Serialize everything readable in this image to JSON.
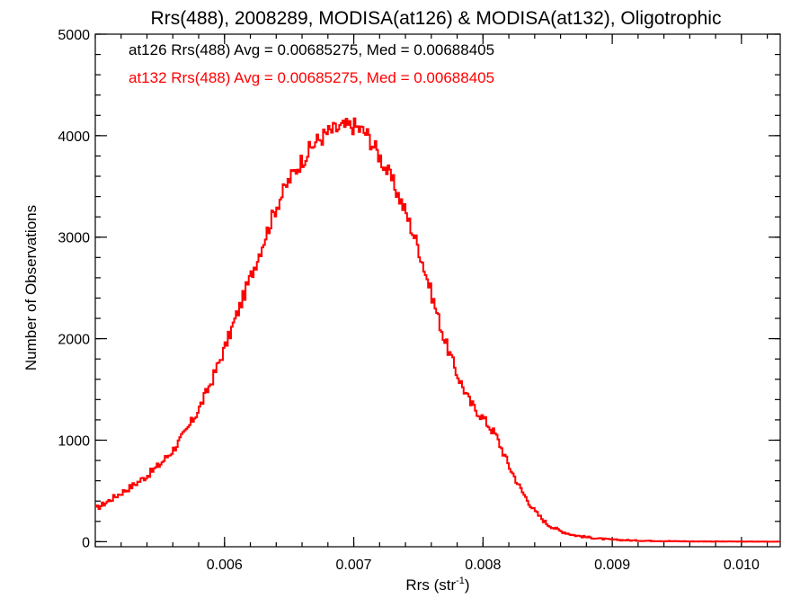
{
  "chart_data": {
    "type": "line",
    "style": "step histogram",
    "title": "Rrs(488), 2008289, MODISA(at126) & MODISA(at132), Oligotrophic",
    "xlabel_base": "Rrs (str",
    "xlabel_sup": "-1",
    "xlabel_close": ")",
    "ylabel": "Number of Observations",
    "xlim": [
      0.005,
      0.0103
    ],
    "ylim": [
      -50,
      5000
    ],
    "x_ticks": [
      {
        "value": 0.006,
        "label": "0.006"
      },
      {
        "value": 0.007,
        "label": "0.007"
      },
      {
        "value": 0.008,
        "label": "0.008"
      },
      {
        "value": 0.009,
        "label": "0.009"
      },
      {
        "value": 0.01,
        "label": "0.010"
      }
    ],
    "y_ticks": [
      {
        "value": 0,
        "label": "0"
      },
      {
        "value": 1000,
        "label": "1000"
      },
      {
        "value": 2000,
        "label": "2000"
      },
      {
        "value": 3000,
        "label": "3000"
      },
      {
        "value": 4000,
        "label": "4000"
      },
      {
        "value": 5000,
        "label": "5000"
      }
    ],
    "annotations": [
      {
        "text": "at126 Rrs(488) Avg = 0.00685275, Med = 0.00688405",
        "color": "#000000"
      },
      {
        "text": "at132 Rrs(488) Avg = 0.00685275, Med = 0.00688405",
        "color": "#ff0000"
      }
    ],
    "series": [
      {
        "color": "#ff0000",
        "points": [
          [
            0.005,
            320
          ],
          [
            0.0051,
            400
          ],
          [
            0.0052,
            480
          ],
          [
            0.0053,
            560
          ],
          [
            0.0054,
            650
          ],
          [
            0.0055,
            760
          ],
          [
            0.0056,
            900
          ],
          [
            0.0057,
            1080
          ],
          [
            0.0058,
            1300
          ],
          [
            0.0059,
            1580
          ],
          [
            0.006,
            1900
          ],
          [
            0.0061,
            2250
          ],
          [
            0.0062,
            2600
          ],
          [
            0.0063,
            2950
          ],
          [
            0.0064,
            3300
          ],
          [
            0.0065,
            3560
          ],
          [
            0.0066,
            3760
          ],
          [
            0.0067,
            3930
          ],
          [
            0.0068,
            4030
          ],
          [
            0.0069,
            4080
          ],
          [
            0.007,
            4100
          ],
          [
            0.0071,
            4020
          ],
          [
            0.0072,
            3800
          ],
          [
            0.0073,
            3550
          ],
          [
            0.0074,
            3250
          ],
          [
            0.0075,
            2900
          ],
          [
            0.0076,
            2450
          ],
          [
            0.0077,
            2000
          ],
          [
            0.0078,
            1650
          ],
          [
            0.0079,
            1370
          ],
          [
            0.008,
            1220
          ],
          [
            0.0081,
            1050
          ],
          [
            0.0082,
            750
          ],
          [
            0.0083,
            500
          ],
          [
            0.0084,
            300
          ],
          [
            0.0085,
            170
          ],
          [
            0.0086,
            105
          ],
          [
            0.0087,
            65
          ],
          [
            0.0088,
            45
          ],
          [
            0.0089,
            30
          ],
          [
            0.009,
            20
          ],
          [
            0.0092,
            10
          ],
          [
            0.0094,
            6
          ],
          [
            0.0096,
            3
          ],
          [
            0.0098,
            2
          ],
          [
            0.01,
            1
          ],
          [
            0.0103,
            0
          ]
        ]
      }
    ]
  }
}
